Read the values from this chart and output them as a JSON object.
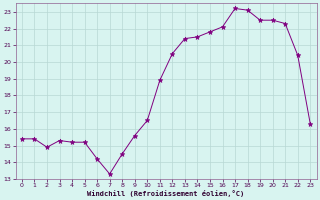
{
  "hours": [
    0,
    1,
    2,
    3,
    4,
    5,
    6,
    7,
    8,
    9,
    10,
    11,
    12,
    13,
    14,
    15,
    16,
    17,
    18,
    19,
    20,
    21,
    22,
    23
  ],
  "values": [
    15.4,
    15.4,
    14.9,
    15.3,
    15.2,
    15.2,
    14.2,
    13.3,
    14.5,
    15.6,
    16.5,
    18.9,
    20.5,
    21.4,
    21.5,
    21.8,
    22.1,
    23.2,
    23.1,
    22.5,
    22.5,
    22.3,
    20.4,
    16.3
  ],
  "line_color": "#800080",
  "marker_color": "#800080",
  "bg_color": "#d8f4f0",
  "grid_color": "#b8d8d4",
  "xlabel": "Windchill (Refroidissement éolien,°C)",
  "ylim": [
    13,
    23.5
  ],
  "xlim": [
    -0.5,
    23.5
  ],
  "yticks": [
    13,
    14,
    15,
    16,
    17,
    18,
    19,
    20,
    21,
    22,
    23
  ],
  "xticks": [
    0,
    1,
    2,
    3,
    4,
    5,
    6,
    7,
    8,
    9,
    10,
    11,
    12,
    13,
    14,
    15,
    16,
    17,
    18,
    19,
    20,
    21,
    22,
    23
  ]
}
